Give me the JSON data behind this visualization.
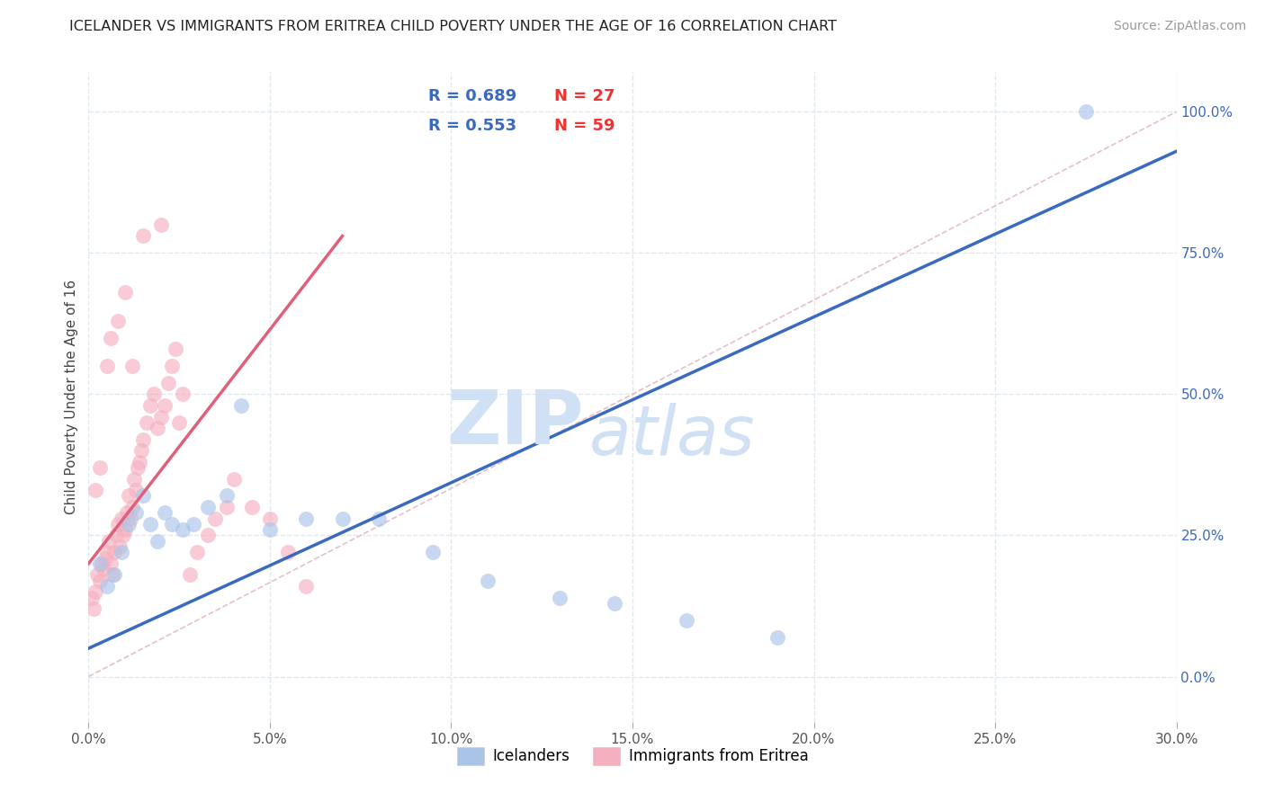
{
  "title": "ICELANDER VS IMMIGRANTS FROM ERITREA CHILD POVERTY UNDER THE AGE OF 16 CORRELATION CHART",
  "source": "Source: ZipAtlas.com",
  "ylabel": "Child Poverty Under the Age of 16",
  "x_tick_labels": [
    "0.0%",
    "5.0%",
    "10.0%",
    "15.0%",
    "20.0%",
    "25.0%",
    "30.0%"
  ],
  "x_tick_values": [
    0.0,
    5.0,
    10.0,
    15.0,
    20.0,
    25.0,
    30.0
  ],
  "y_tick_labels_right": [
    "0.0%",
    "25.0%",
    "50.0%",
    "75.0%",
    "100.0%"
  ],
  "y_tick_values_right": [
    0.0,
    25.0,
    50.0,
    75.0,
    100.0
  ],
  "xlim": [
    0.0,
    30.0
  ],
  "ylim": [
    -8.0,
    107.0
  ],
  "legend_blue_r": "R = 0.689",
  "legend_blue_n": "N = 27",
  "legend_pink_r": "R = 0.553",
  "legend_pink_n": "N = 59",
  "blue_color": "#aac4e8",
  "pink_color": "#f5b0c0",
  "blue_line_color": "#3a6abf",
  "pink_line_color": "#e0607a",
  "legend_r_color": "#3a6abf",
  "legend_n_color": "#ee3333",
  "watermark_zip": "ZIP",
  "watermark_atlas": "atlas",
  "watermark_color": "#d0e0f5",
  "blue_scatter_x": [
    0.3,
    0.5,
    0.7,
    0.9,
    1.1,
    1.3,
    1.5,
    1.7,
    1.9,
    2.1,
    2.3,
    2.6,
    2.9,
    3.3,
    3.8,
    4.2,
    5.0,
    6.0,
    7.0,
    8.0,
    9.5,
    11.0,
    13.0,
    14.5,
    16.5,
    19.0,
    27.5
  ],
  "blue_scatter_y": [
    20.0,
    16.0,
    18.0,
    22.0,
    27.0,
    29.0,
    32.0,
    27.0,
    24.0,
    29.0,
    27.0,
    26.0,
    27.0,
    30.0,
    32.0,
    48.0,
    26.0,
    28.0,
    28.0,
    28.0,
    22.0,
    17.0,
    14.0,
    13.0,
    10.0,
    7.0,
    100.0
  ],
  "pink_scatter_x": [
    0.1,
    0.15,
    0.2,
    0.25,
    0.3,
    0.35,
    0.4,
    0.45,
    0.5,
    0.55,
    0.6,
    0.65,
    0.7,
    0.75,
    0.8,
    0.85,
    0.9,
    0.95,
    1.0,
    1.05,
    1.1,
    1.15,
    1.2,
    1.25,
    1.3,
    1.35,
    1.4,
    1.45,
    1.5,
    1.6,
    1.7,
    1.8,
    1.9,
    2.0,
    2.1,
    2.2,
    2.3,
    2.4,
    2.5,
    2.6,
    2.8,
    3.0,
    3.3,
    3.5,
    3.8,
    4.0,
    4.5,
    5.0,
    5.5,
    6.0,
    0.2,
    0.3,
    0.5,
    0.6,
    0.8,
    1.0,
    1.2,
    1.5,
    2.0
  ],
  "pink_scatter_y": [
    14.0,
    12.0,
    15.0,
    18.0,
    17.0,
    20.0,
    19.0,
    21.0,
    22.0,
    24.0,
    20.0,
    18.0,
    22.0,
    25.0,
    27.0,
    23.0,
    28.0,
    25.0,
    26.0,
    29.0,
    32.0,
    28.0,
    30.0,
    35.0,
    33.0,
    37.0,
    38.0,
    40.0,
    42.0,
    45.0,
    48.0,
    50.0,
    44.0,
    46.0,
    48.0,
    52.0,
    55.0,
    58.0,
    45.0,
    50.0,
    18.0,
    22.0,
    25.0,
    28.0,
    30.0,
    35.0,
    30.0,
    28.0,
    22.0,
    16.0,
    33.0,
    37.0,
    55.0,
    60.0,
    63.0,
    68.0,
    55.0,
    78.0,
    80.0
  ],
  "blue_trend_x": [
    0.0,
    30.0
  ],
  "blue_trend_y": [
    5.0,
    93.0
  ],
  "pink_trend_x": [
    0.0,
    7.0
  ],
  "pink_trend_y": [
    20.0,
    78.0
  ],
  "ref_line_x": [
    0.0,
    30.0
  ],
  "ref_line_y": [
    0.0,
    100.0
  ],
  "ref_line_color": "#e0b0b8",
  "grid_color": "#dde8f0",
  "background_color": "#ffffff",
  "title_fontsize": 11.5,
  "source_fontsize": 10
}
